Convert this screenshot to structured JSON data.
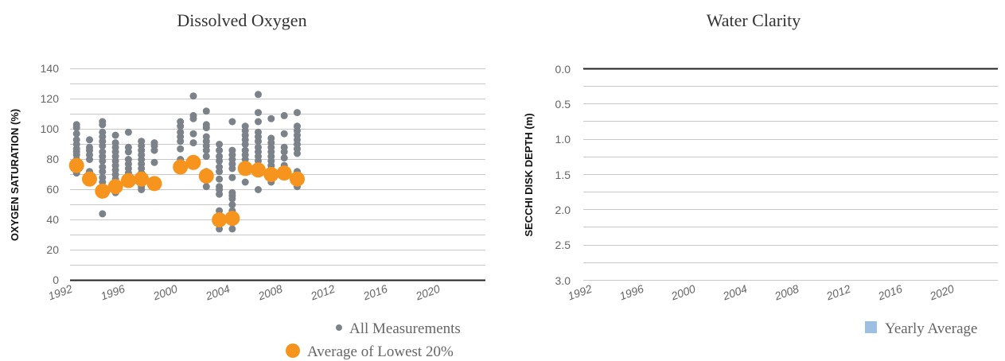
{
  "colors": {
    "measurements": "#7b8289",
    "average": "#f7941d",
    "yearly": "#9dbfe1"
  },
  "chart_data": [
    {
      "type": "scatter",
      "title": "Dissolved Oxygen",
      "ylabel": "OXYGEN SATURATION (%)",
      "xlabel": "",
      "xlim": [
        1992,
        2024
      ],
      "ylim": [
        0,
        140
      ],
      "x_ticks": [
        "1992",
        "1996",
        "2000",
        "2004",
        "2008",
        "2012",
        "2016",
        "2020"
      ],
      "y_ticks": [
        "140",
        "120",
        "100",
        "80",
        "60",
        "40",
        "20",
        "0"
      ],
      "legend_position": "bottom-right",
      "series": [
        {
          "name": "All Measurements",
          "points": [
            [
              1992.5,
              103
            ],
            [
              1992.5,
              101
            ],
            [
              1992.5,
              97
            ],
            [
              1992.5,
              93
            ],
            [
              1992.5,
              90
            ],
            [
              1992.5,
              87
            ],
            [
              1992.5,
              85
            ],
            [
              1992.5,
              83
            ],
            [
              1992.5,
              80
            ],
            [
              1992.5,
              78
            ],
            [
              1992.5,
              76
            ],
            [
              1992.5,
              73
            ],
            [
              1992.5,
              71
            ],
            [
              1993.5,
              93
            ],
            [
              1993.5,
              88
            ],
            [
              1993.5,
              86
            ],
            [
              1993.5,
              83
            ],
            [
              1993.5,
              80
            ],
            [
              1993.5,
              72
            ],
            [
              1993.5,
              69
            ],
            [
              1994.5,
              105
            ],
            [
              1994.5,
              103
            ],
            [
              1994.5,
              98
            ],
            [
              1994.5,
              95
            ],
            [
              1994.5,
              92
            ],
            [
              1994.5,
              89
            ],
            [
              1994.5,
              85
            ],
            [
              1994.5,
              82
            ],
            [
              1994.5,
              79
            ],
            [
              1994.5,
              75
            ],
            [
              1994.5,
              72
            ],
            [
              1994.5,
              68
            ],
            [
              1994.5,
              65
            ],
            [
              1994.5,
              62
            ],
            [
              1994.5,
              44
            ],
            [
              1995.5,
              96
            ],
            [
              1995.5,
              91
            ],
            [
              1995.5,
              88
            ],
            [
              1995.5,
              85
            ],
            [
              1995.5,
              82
            ],
            [
              1995.5,
              79
            ],
            [
              1995.5,
              76
            ],
            [
              1995.5,
              73
            ],
            [
              1995.5,
              70
            ],
            [
              1995.5,
              67
            ],
            [
              1995.5,
              64
            ],
            [
              1995.5,
              61
            ],
            [
              1995.5,
              58
            ],
            [
              1996.5,
              98
            ],
            [
              1996.5,
              88
            ],
            [
              1996.5,
              85
            ],
            [
              1996.5,
              80
            ],
            [
              1996.5,
              77
            ],
            [
              1996.5,
              74
            ],
            [
              1996.5,
              71
            ],
            [
              1996.5,
              68
            ],
            [
              1996.5,
              65
            ],
            [
              1997.5,
              92
            ],
            [
              1997.5,
              89
            ],
            [
              1997.5,
              86
            ],
            [
              1997.5,
              83
            ],
            [
              1997.5,
              80
            ],
            [
              1997.5,
              77
            ],
            [
              1997.5,
              74
            ],
            [
              1997.5,
              71
            ],
            [
              1997.5,
              68
            ],
            [
              1997.5,
              65
            ],
            [
              1997.5,
              62
            ],
            [
              1997.5,
              60
            ],
            [
              1998.5,
              91
            ],
            [
              1998.5,
              89
            ],
            [
              1998.5,
              86
            ],
            [
              1998.5,
              78
            ],
            [
              1998.5,
              66
            ],
            [
              2000.5,
              105
            ],
            [
              2000.5,
              102
            ],
            [
              2000.5,
              98
            ],
            [
              2000.5,
              95
            ],
            [
              2000.5,
              92
            ],
            [
              2000.5,
              87
            ],
            [
              2000.5,
              80
            ],
            [
              2000.5,
              76
            ],
            [
              2001.5,
              122
            ],
            [
              2001.5,
              109
            ],
            [
              2001.5,
              107
            ],
            [
              2001.5,
              97
            ],
            [
              2001.5,
              91
            ],
            [
              2001.5,
              79
            ],
            [
              2002.5,
              112
            ],
            [
              2002.5,
              103
            ],
            [
              2002.5,
              101
            ],
            [
              2002.5,
              95
            ],
            [
              2002.5,
              92
            ],
            [
              2002.5,
              89
            ],
            [
              2002.5,
              86
            ],
            [
              2002.5,
              82
            ],
            [
              2002.5,
              72
            ],
            [
              2002.5,
              69
            ],
            [
              2002.5,
              66
            ],
            [
              2002.5,
              62
            ],
            [
              2003.5,
              90
            ],
            [
              2003.5,
              86
            ],
            [
              2003.5,
              82
            ],
            [
              2003.5,
              79
            ],
            [
              2003.5,
              75
            ],
            [
              2003.5,
              72
            ],
            [
              2003.5,
              67
            ],
            [
              2003.5,
              62
            ],
            [
              2003.5,
              60
            ],
            [
              2003.5,
              57
            ],
            [
              2003.5,
              46
            ],
            [
              2003.5,
              42
            ],
            [
              2003.5,
              37
            ],
            [
              2003.5,
              34
            ],
            [
              2004.5,
              105
            ],
            [
              2004.5,
              86
            ],
            [
              2004.5,
              83
            ],
            [
              2004.5,
              80
            ],
            [
              2004.5,
              77
            ],
            [
              2004.5,
              74
            ],
            [
              2004.5,
              68
            ],
            [
              2004.5,
              58
            ],
            [
              2004.5,
              56
            ],
            [
              2004.5,
              54
            ],
            [
              2004.5,
              50
            ],
            [
              2004.5,
              46
            ],
            [
              2004.5,
              38
            ],
            [
              2004.5,
              34
            ],
            [
              2005.5,
              102
            ],
            [
              2005.5,
              99
            ],
            [
              2005.5,
              96
            ],
            [
              2005.5,
              93
            ],
            [
              2005.5,
              90
            ],
            [
              2005.5,
              86
            ],
            [
              2005.5,
              83
            ],
            [
              2005.5,
              80
            ],
            [
              2005.5,
              77
            ],
            [
              2005.5,
              72
            ],
            [
              2005.5,
              65
            ],
            [
              2006.5,
              123
            ],
            [
              2006.5,
              111
            ],
            [
              2006.5,
              105
            ],
            [
              2006.5,
              98
            ],
            [
              2006.5,
              95
            ],
            [
              2006.5,
              92
            ],
            [
              2006.5,
              88
            ],
            [
              2006.5,
              85
            ],
            [
              2006.5,
              82
            ],
            [
              2006.5,
              79
            ],
            [
              2006.5,
              76
            ],
            [
              2006.5,
              71
            ],
            [
              2006.5,
              60
            ],
            [
              2007.5,
              107
            ],
            [
              2007.5,
              94
            ],
            [
              2007.5,
              91
            ],
            [
              2007.5,
              88
            ],
            [
              2007.5,
              85
            ],
            [
              2007.5,
              82
            ],
            [
              2007.5,
              79
            ],
            [
              2007.5,
              76
            ],
            [
              2007.5,
              73
            ],
            [
              2007.5,
              70
            ],
            [
              2007.5,
              67
            ],
            [
              2007.5,
              65
            ],
            [
              2008.5,
              109
            ],
            [
              2008.5,
              97
            ],
            [
              2008.5,
              88
            ],
            [
              2008.5,
              85
            ],
            [
              2008.5,
              81
            ],
            [
              2008.5,
              76
            ],
            [
              2008.5,
              72
            ],
            [
              2009.5,
              111
            ],
            [
              2009.5,
              102
            ],
            [
              2009.5,
              99
            ],
            [
              2009.5,
              96
            ],
            [
              2009.5,
              93
            ],
            [
              2009.5,
              90
            ],
            [
              2009.5,
              87
            ],
            [
              2009.5,
              84
            ],
            [
              2009.5,
              72
            ],
            [
              2009.5,
              69
            ],
            [
              2009.5,
              65
            ],
            [
              2009.5,
              62
            ]
          ]
        },
        {
          "name": "Average of Lowest 20%",
          "points": [
            [
              1992.5,
              76
            ],
            [
              1993.5,
              67
            ],
            [
              1994.5,
              59
            ],
            [
              1995.5,
              62
            ],
            [
              1996.5,
              66
            ],
            [
              1997.5,
              67
            ],
            [
              1998.5,
              64
            ],
            [
              2000.5,
              75
            ],
            [
              2001.5,
              78
            ],
            [
              2002.5,
              69
            ],
            [
              2003.5,
              40
            ],
            [
              2004.5,
              41
            ],
            [
              2005.5,
              74
            ],
            [
              2006.5,
              73
            ],
            [
              2007.5,
              70
            ],
            [
              2008.5,
              71
            ],
            [
              2009.5,
              67
            ]
          ]
        }
      ]
    },
    {
      "type": "bar",
      "title": "Water Clarity",
      "ylabel": "SECCHI DISK DEPTH (m)",
      "xlabel": "",
      "xlim": [
        1992,
        2024
      ],
      "ylim": [
        0,
        3
      ],
      "y_reversed": true,
      "x_ticks": [
        "1992",
        "1996",
        "2000",
        "2004",
        "2008",
        "2012",
        "2016",
        "2020"
      ],
      "y_ticks": [
        "0.0",
        "0.5",
        "1.0",
        "1.5",
        "2.0",
        "2.5",
        "3.0"
      ],
      "legend_position": "bottom-right",
      "series": [
        {
          "name": "Yearly Average",
          "values": []
        }
      ]
    }
  ]
}
